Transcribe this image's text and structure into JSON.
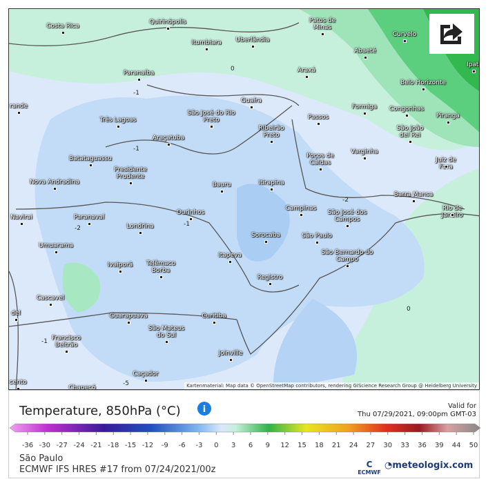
{
  "map": {
    "cities": [
      "Costa Rica",
      "Quirinópolis",
      "Patos de Minas",
      "Curvelo",
      "Itumbiara",
      "Uberlândia",
      "Abaeté",
      "Ipati",
      "Paranaíba",
      "Araxá",
      "Belo Horizonte",
      "rande",
      "Guaíra",
      "São José do Rio Preto",
      "Formiga",
      "Congonhas",
      "Passos",
      "Piranga",
      "Três Lagoas",
      "Ribeirão Preto",
      "São João del Rei",
      "Araçatuba",
      "Varginha",
      "Batataguassu",
      "Poços de Caldas",
      "Juiz de Fora",
      "Presidente Prudente",
      "Nova Andradina",
      "Itirapina",
      "Bauru",
      "Barra Mansa",
      "Campinas",
      "São José dos Campos",
      "Rio de Janeiro",
      "Navirai",
      "Paranavaí",
      "Ourinhos",
      "Londrina",
      "Sorocaba",
      "São Paulo",
      "Umuarama",
      "São Bernardo do Campo",
      "Itapeva",
      "Ivaiporã",
      "Telêmaco Borba",
      "Registro",
      "Cascavel",
      "del",
      "Guarapuava",
      "Curitiba",
      "São Mateus do Sul",
      "Francisco Beltrão",
      "Joinville",
      "Caçador",
      "Chapecó",
      "cento"
    ],
    "contours": [
      0,
      -1,
      -1,
      -2,
      -2,
      -1,
      -1,
      -5,
      0
    ],
    "attribution": "Kartenmaterial: Map data © OpenStreetMap contributors, rendering GIScience Research Group @ Heidelberg University"
  },
  "legend": {
    "title": "Temperature, 850hPa (°C)",
    "valid_label": "Valid for",
    "valid_time": "Thu 07/29/2021, 09:00pm GMT-03",
    "ticks": [
      -36,
      -30,
      -27,
      -24,
      -21,
      -18,
      -15,
      -12,
      -9,
      -6,
      -3,
      0,
      3,
      6,
      9,
      12,
      15,
      18,
      21,
      24,
      27,
      30,
      33,
      36,
      39,
      44,
      50
    ]
  },
  "footer": {
    "location": "São Paulo",
    "model": "ECMWF IFS HRES #17 from 07/24/2021/00z",
    "ecmwf": "ECMWF",
    "brand": "meteologix.com"
  }
}
